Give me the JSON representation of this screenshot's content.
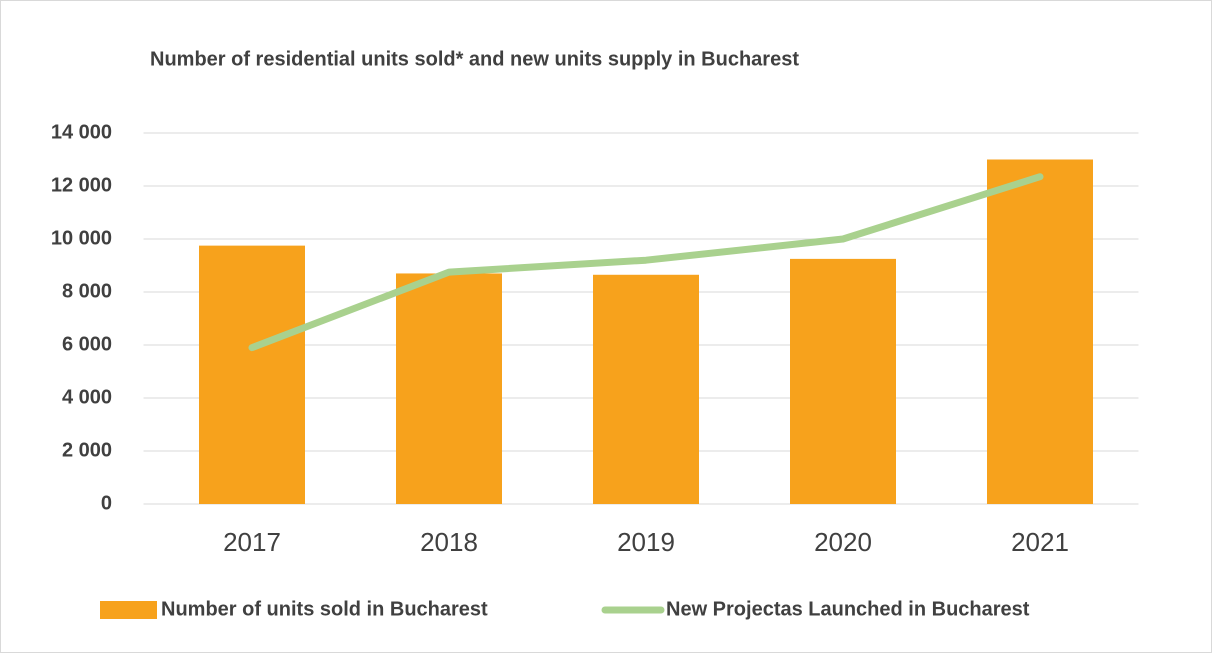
{
  "chart_data": {
    "type": "bar",
    "title": "Number of residential units sold* and new units supply in Bucharest",
    "categories": [
      "2017",
      "2018",
      "2019",
      "2020",
      "2021"
    ],
    "series": [
      {
        "name": "Number of units sold in Bucharest",
        "type": "bar",
        "color": "#f7a21c",
        "values": [
          9750,
          8700,
          8650,
          9250,
          13000
        ]
      },
      {
        "name": "New Projectas Launched in Bucharest",
        "type": "line",
        "color": "#a9d18e",
        "values": [
          5900,
          8750,
          9200,
          10000,
          12350
        ]
      }
    ],
    "ylim": [
      0,
      14000
    ],
    "yticks": [
      0,
      {
        "value": 2000,
        "label": "2 000"
      },
      {
        "value": 4000,
        "label": "4 000"
      },
      {
        "value": 6000,
        "label": "6 000"
      },
      {
        "value": 8000,
        "label": "8 000"
      },
      {
        "value": 10000,
        "label": "10 000"
      },
      {
        "value": 12000,
        "label": "12 000"
      },
      {
        "value": 14000,
        "label": "14 000"
      }
    ],
    "grid": true,
    "legend": "bottom"
  }
}
